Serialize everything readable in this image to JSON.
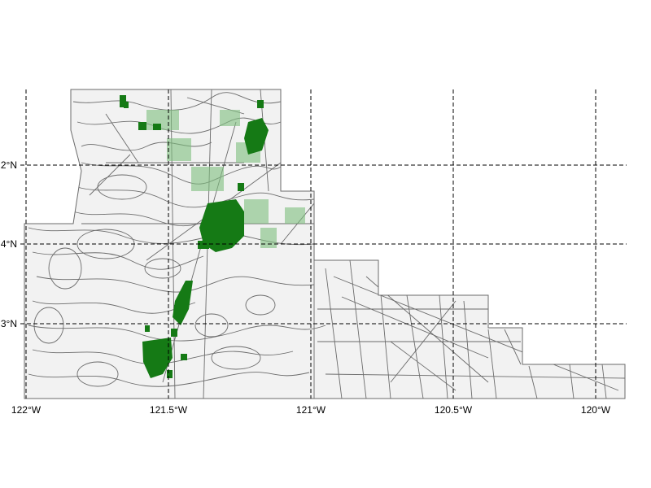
{
  "map": {
    "longitude_labels": [
      "122°W",
      "121.5°W",
      "121°W",
      "120.5°W",
      "120°W"
    ],
    "latitude_labels": [
      "2°N",
      "4°N",
      "3°N"
    ],
    "gridline_style": "dashed black",
    "colors": {
      "land_fill": "#f2f2f2",
      "boundary_stroke": "#6b6b6b",
      "highlight_dark": "#157a15",
      "highlight_light": "#7fc07f",
      "grid": "#000000"
    }
  }
}
